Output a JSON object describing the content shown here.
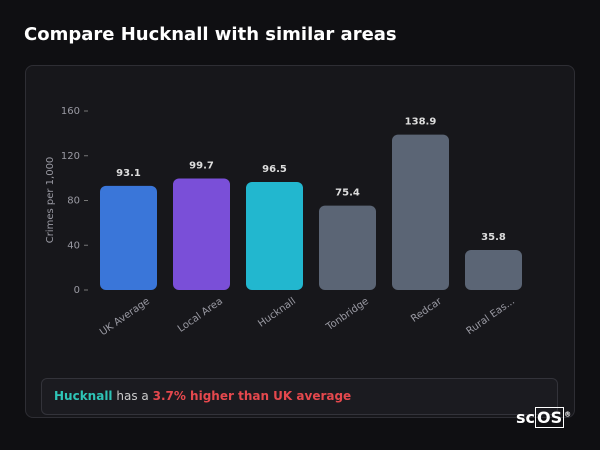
{
  "header": {
    "title": "Compare Hucknall with similar areas"
  },
  "chart_data": {
    "type": "bar",
    "y_label": "Crimes per 1,000",
    "categories": [
      "UK Average",
      "Local Area",
      "Hucknall",
      "Tonbridge",
      "Redcar",
      "Rural Eas..."
    ],
    "values": [
      93.1,
      99.7,
      96.5,
      75.4,
      138.9,
      35.8
    ],
    "colors": [
      "#3a76d9",
      "#7a4fd8",
      "#22b7cf",
      "#5b6575",
      "#5b6575",
      "#5b6575"
    ],
    "ylim": [
      0,
      160
    ],
    "yticks": [
      0,
      40,
      80,
      120,
      160
    ]
  },
  "summary": {
    "area": "Hucknall",
    "text": "has a",
    "highlight": "3.7% higher than UK average"
  },
  "logo": {
    "prefix": "sc",
    "boxed": "OS",
    "mark": "®"
  }
}
